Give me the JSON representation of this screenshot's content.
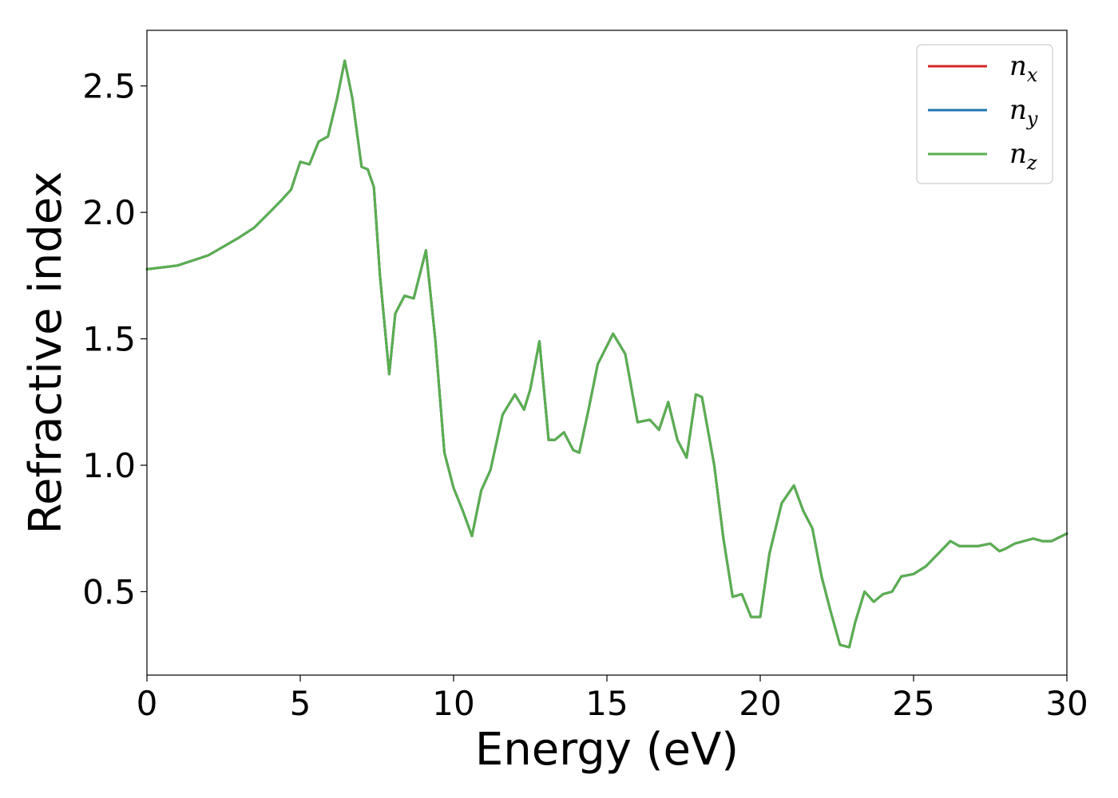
{
  "chart_data": {
    "type": "line",
    "title": "",
    "xlabel": "Energy (eV)",
    "ylabel": "Refractive index",
    "xlim": [
      0,
      30
    ],
    "ylim": [
      0.17,
      2.72
    ],
    "xticks": [
      0,
      5,
      10,
      15,
      20,
      25,
      30
    ],
    "xtick_labels": [
      "0",
      "5",
      "10",
      "15",
      "20",
      "25",
      "30"
    ],
    "yticks": [
      0.5,
      1.0,
      1.5,
      2.0,
      2.5
    ],
    "ytick_labels": [
      "0.5",
      "1.0",
      "1.5",
      "2.0",
      "2.5"
    ],
    "grid": false,
    "legend": {
      "position": "top-right",
      "entries": [
        {
          "base": "n",
          "sub": "x",
          "color": "#d62728"
        },
        {
          "base": "n",
          "sub": "y",
          "color": "#1f77b4"
        },
        {
          "base": "n",
          "sub": "z",
          "color": "#5aaf4f"
        }
      ]
    },
    "series": [
      {
        "name": "n_x",
        "color": "#d62728"
      },
      {
        "name": "n_y",
        "color": "#1f77b4"
      },
      {
        "name": "n_z",
        "color": "#5aaf4f"
      }
    ],
    "x": [
      0,
      1,
      2,
      3,
      3.5,
      4,
      4.4,
      4.7,
      5.0,
      5.3,
      5.6,
      5.9,
      6.2,
      6.45,
      6.7,
      7.0,
      7.2,
      7.4,
      7.6,
      7.9,
      8.1,
      8.4,
      8.7,
      9.1,
      9.4,
      9.7,
      10.0,
      10.3,
      10.6,
      10.9,
      11.2,
      11.6,
      12.0,
      12.3,
      12.5,
      12.8,
      13.1,
      13.3,
      13.6,
      13.9,
      14.1,
      14.4,
      14.7,
      15.2,
      15.6,
      16.0,
      16.4,
      16.7,
      17.0,
      17.3,
      17.6,
      17.9,
      18.1,
      18.5,
      18.8,
      19.1,
      19.4,
      19.7,
      20.0,
      20.3,
      20.7,
      21.1,
      21.4,
      21.7,
      22.0,
      22.3,
      22.6,
      22.9,
      23.1,
      23.4,
      23.7,
      24.0,
      24.3,
      24.6,
      25.0,
      25.4,
      25.8,
      26.2,
      26.5,
      26.8,
      27.1,
      27.5,
      27.8,
      28.0,
      28.3,
      28.6,
      28.9,
      29.2,
      29.5,
      30.0
    ],
    "values": [
      1.775,
      1.79,
      1.83,
      1.9,
      1.94,
      2.0,
      2.05,
      2.09,
      2.2,
      2.19,
      2.28,
      2.3,
      2.45,
      2.6,
      2.45,
      2.18,
      2.17,
      2.1,
      1.75,
      1.36,
      1.6,
      1.67,
      1.66,
      1.85,
      1.5,
      1.05,
      0.91,
      0.82,
      0.72,
      0.9,
      0.98,
      1.2,
      1.28,
      1.22,
      1.3,
      1.49,
      1.1,
      1.1,
      1.13,
      1.06,
      1.05,
      1.22,
      1.4,
      1.52,
      1.44,
      1.17,
      1.18,
      1.14,
      1.25,
      1.1,
      1.03,
      1.28,
      1.27,
      1.0,
      0.71,
      0.48,
      0.49,
      0.4,
      0.4,
      0.65,
      0.85,
      0.92,
      0.82,
      0.75,
      0.56,
      0.42,
      0.29,
      0.28,
      0.38,
      0.5,
      0.46,
      0.49,
      0.5,
      0.56,
      0.57,
      0.6,
      0.65,
      0.7,
      0.68,
      0.68,
      0.68,
      0.69,
      0.66,
      0.67,
      0.69,
      0.7,
      0.71,
      0.7,
      0.7,
      0.73
    ]
  }
}
